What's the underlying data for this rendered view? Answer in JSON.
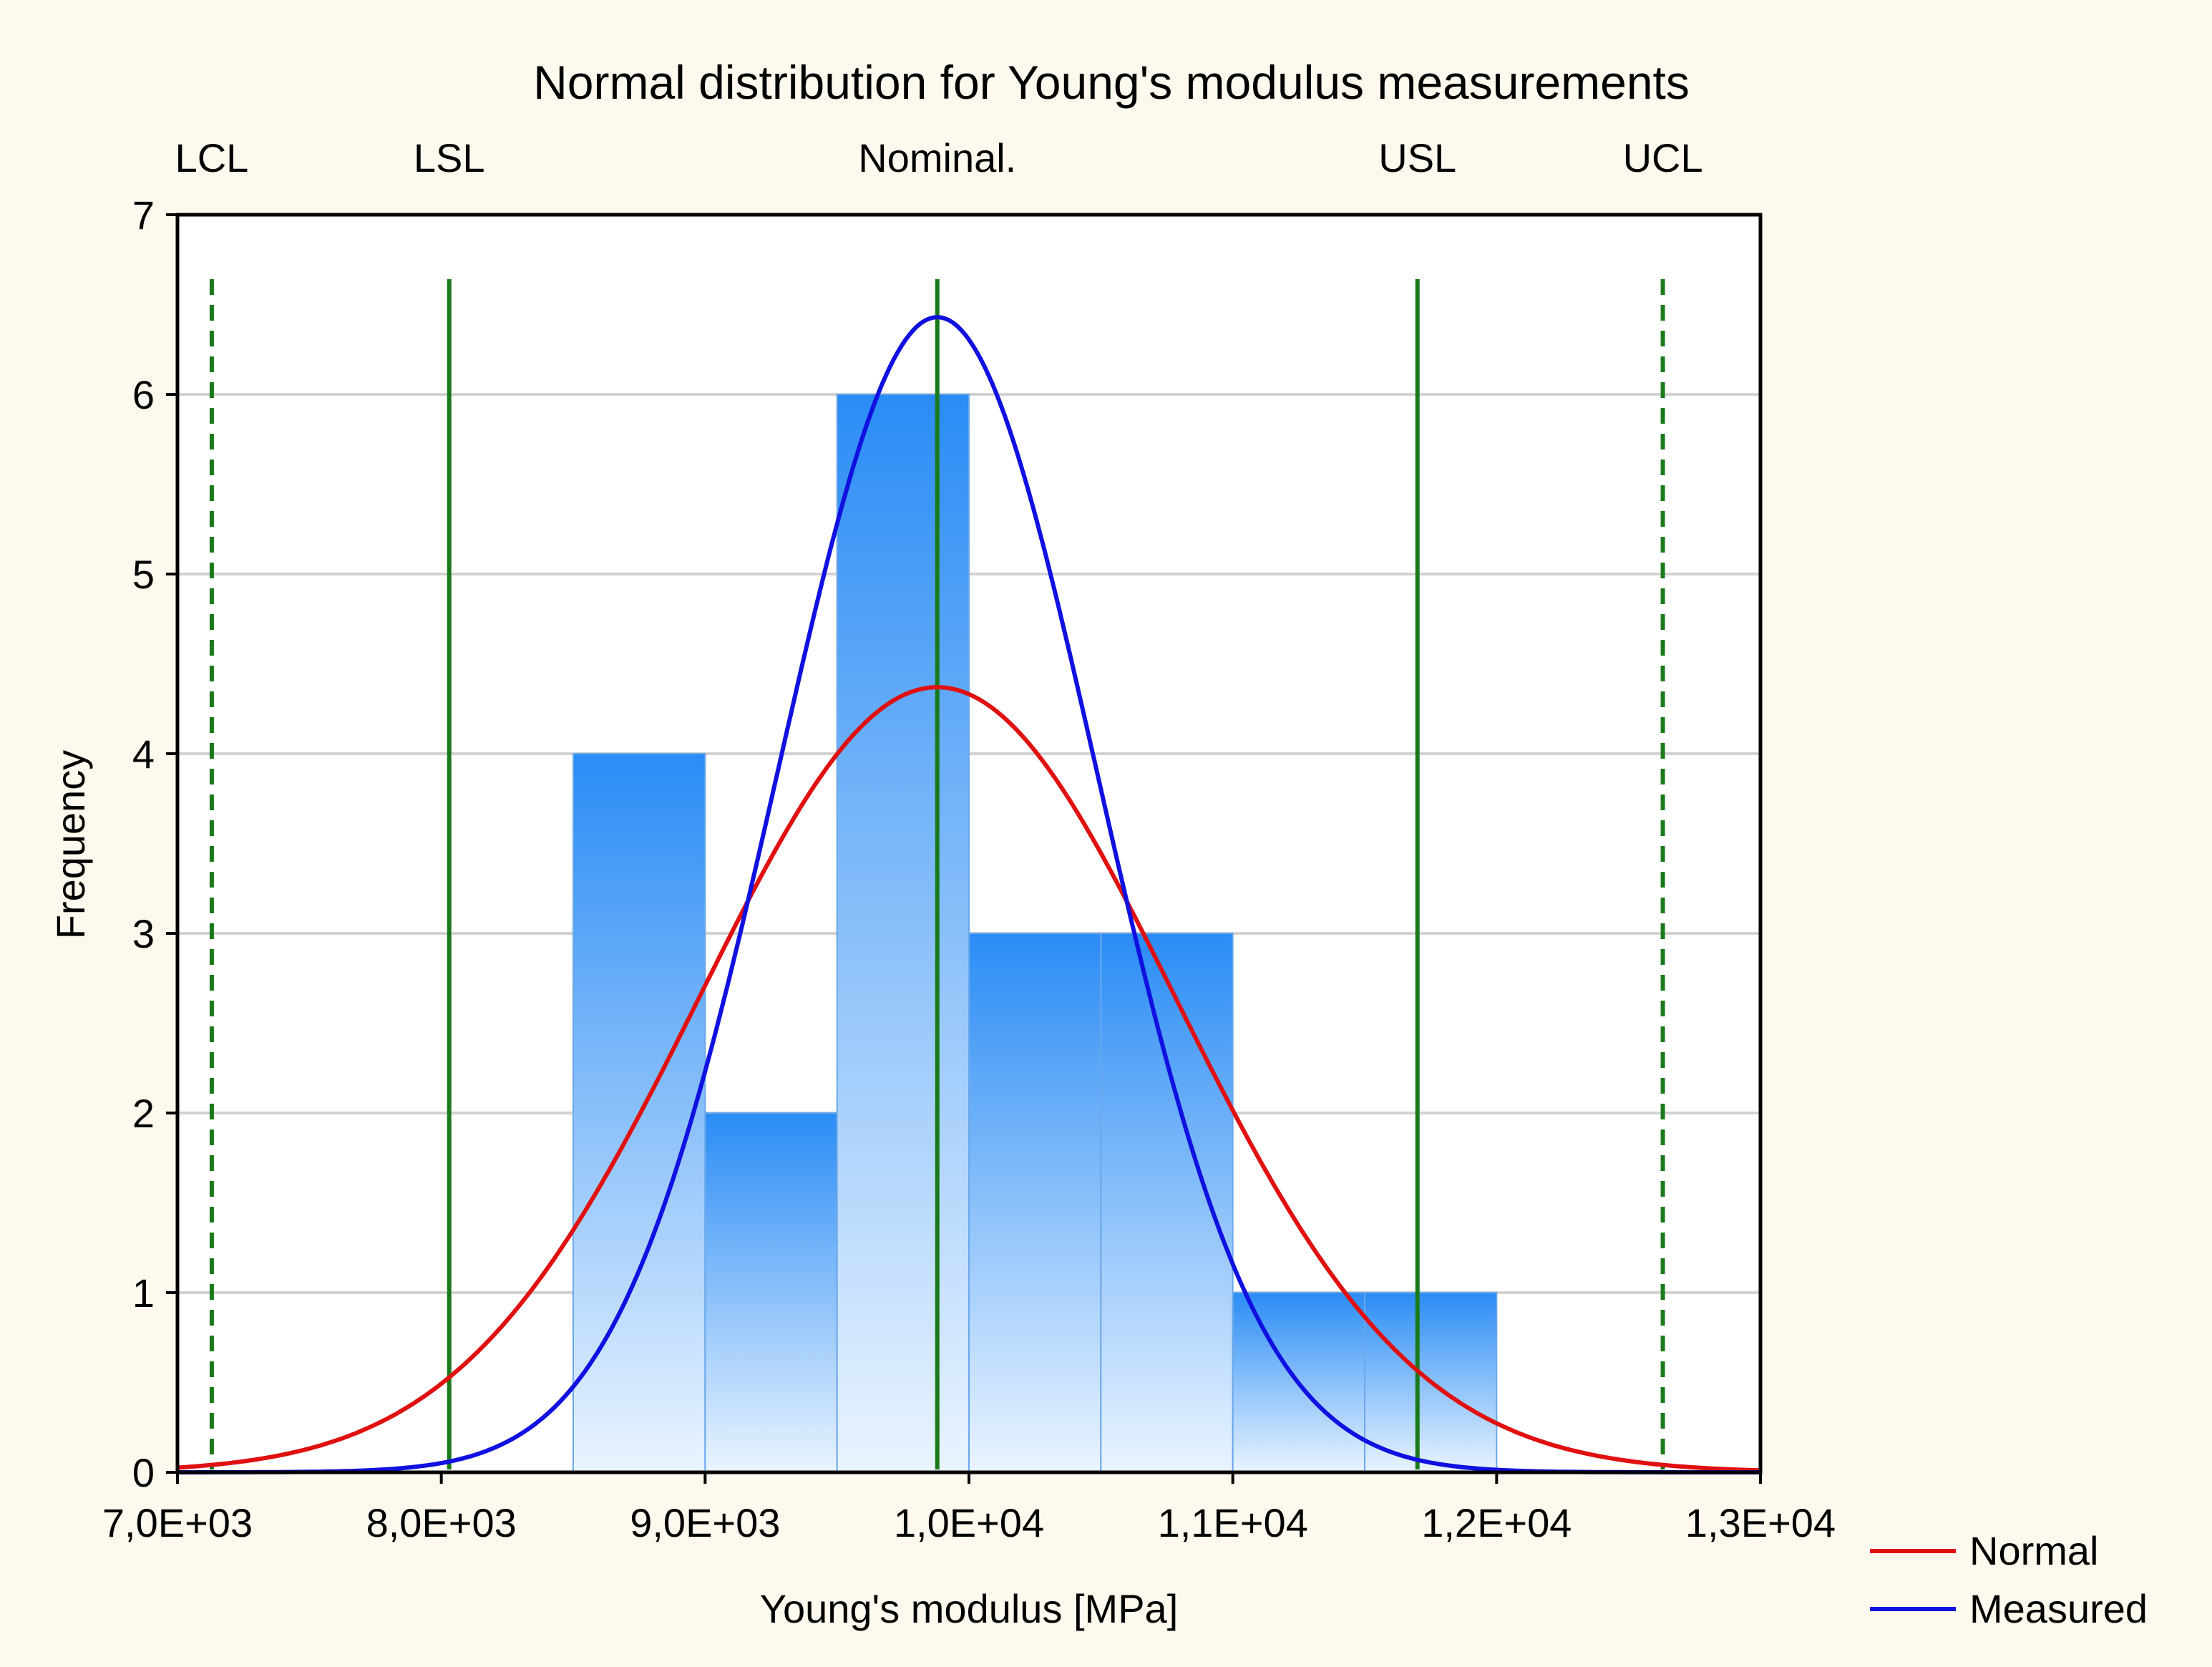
{
  "chart_data": {
    "type": "bar",
    "title": "Normal distribution for Young's modulus measurements",
    "xlabel": "Young's modulus [MPa]",
    "ylabel": "Frequency",
    "xlim": [
      7000,
      13000
    ],
    "ylim": [
      0,
      7
    ],
    "x_ticks": [
      7000,
      8000,
      9000,
      10000,
      11000,
      12000,
      13000
    ],
    "x_tick_labels": [
      "7,0E+03",
      "8,0E+03",
      "9,0E+03",
      "1,0E+04",
      "1,1E+04",
      "1,2E+04",
      "1,3E+04"
    ],
    "y_ticks": [
      0,
      1,
      2,
      3,
      4,
      5,
      6,
      7
    ],
    "y_tick_labels": [
      "0",
      "1",
      "2",
      "3",
      "4",
      "5",
      "6",
      "7"
    ],
    "grid": true,
    "bins": [
      {
        "from": 8500,
        "to": 9000,
        "count": 4
      },
      {
        "from": 9000,
        "to": 9500,
        "count": 2
      },
      {
        "from": 9500,
        "to": 10000,
        "count": 6
      },
      {
        "from": 10000,
        "to": 10500,
        "count": 3
      },
      {
        "from": 10500,
        "to": 11000,
        "count": 3
      },
      {
        "from": 11000,
        "to": 11500,
        "count": 1
      },
      {
        "from": 11500,
        "to": 12000,
        "count": 1
      }
    ],
    "reference_lines": [
      {
        "label": "LCL",
        "x": 7130,
        "style": "dashed",
        "color": "#1a7a1a"
      },
      {
        "label": "LSL",
        "x": 8030,
        "style": "solid",
        "color": "#1a7a1a"
      },
      {
        "label": "Nominal.",
        "x": 9880,
        "style": "solid",
        "color": "#1a7a1a"
      },
      {
        "label": "USL",
        "x": 11700,
        "style": "solid",
        "color": "#1a7a1a"
      },
      {
        "label": "UCL",
        "x": 12630,
        "style": "dashed",
        "color": "#1a7a1a"
      }
    ],
    "series": [
      {
        "name": "Normal",
        "type": "normal-curve",
        "mean": 9880,
        "sd": 900,
        "peak": 4.37,
        "color": "#e01010"
      },
      {
        "name": "Measured",
        "type": "normal-curve",
        "mean": 9880,
        "sd": 605,
        "peak": 6.43,
        "color": "#1010e0"
      }
    ],
    "legend": {
      "placement": "bottom-right",
      "items": [
        "Normal",
        "Measured"
      ]
    },
    "colors": {
      "page_background": "#fdf9ee",
      "plot_background": "#ffffff",
      "bar_top": "#2a8cf5",
      "bar_bottom": "#eaf4ff",
      "bar_stroke": "#6aa8ea",
      "gridline": "#d2d2d2",
      "axis": "#000000"
    }
  }
}
